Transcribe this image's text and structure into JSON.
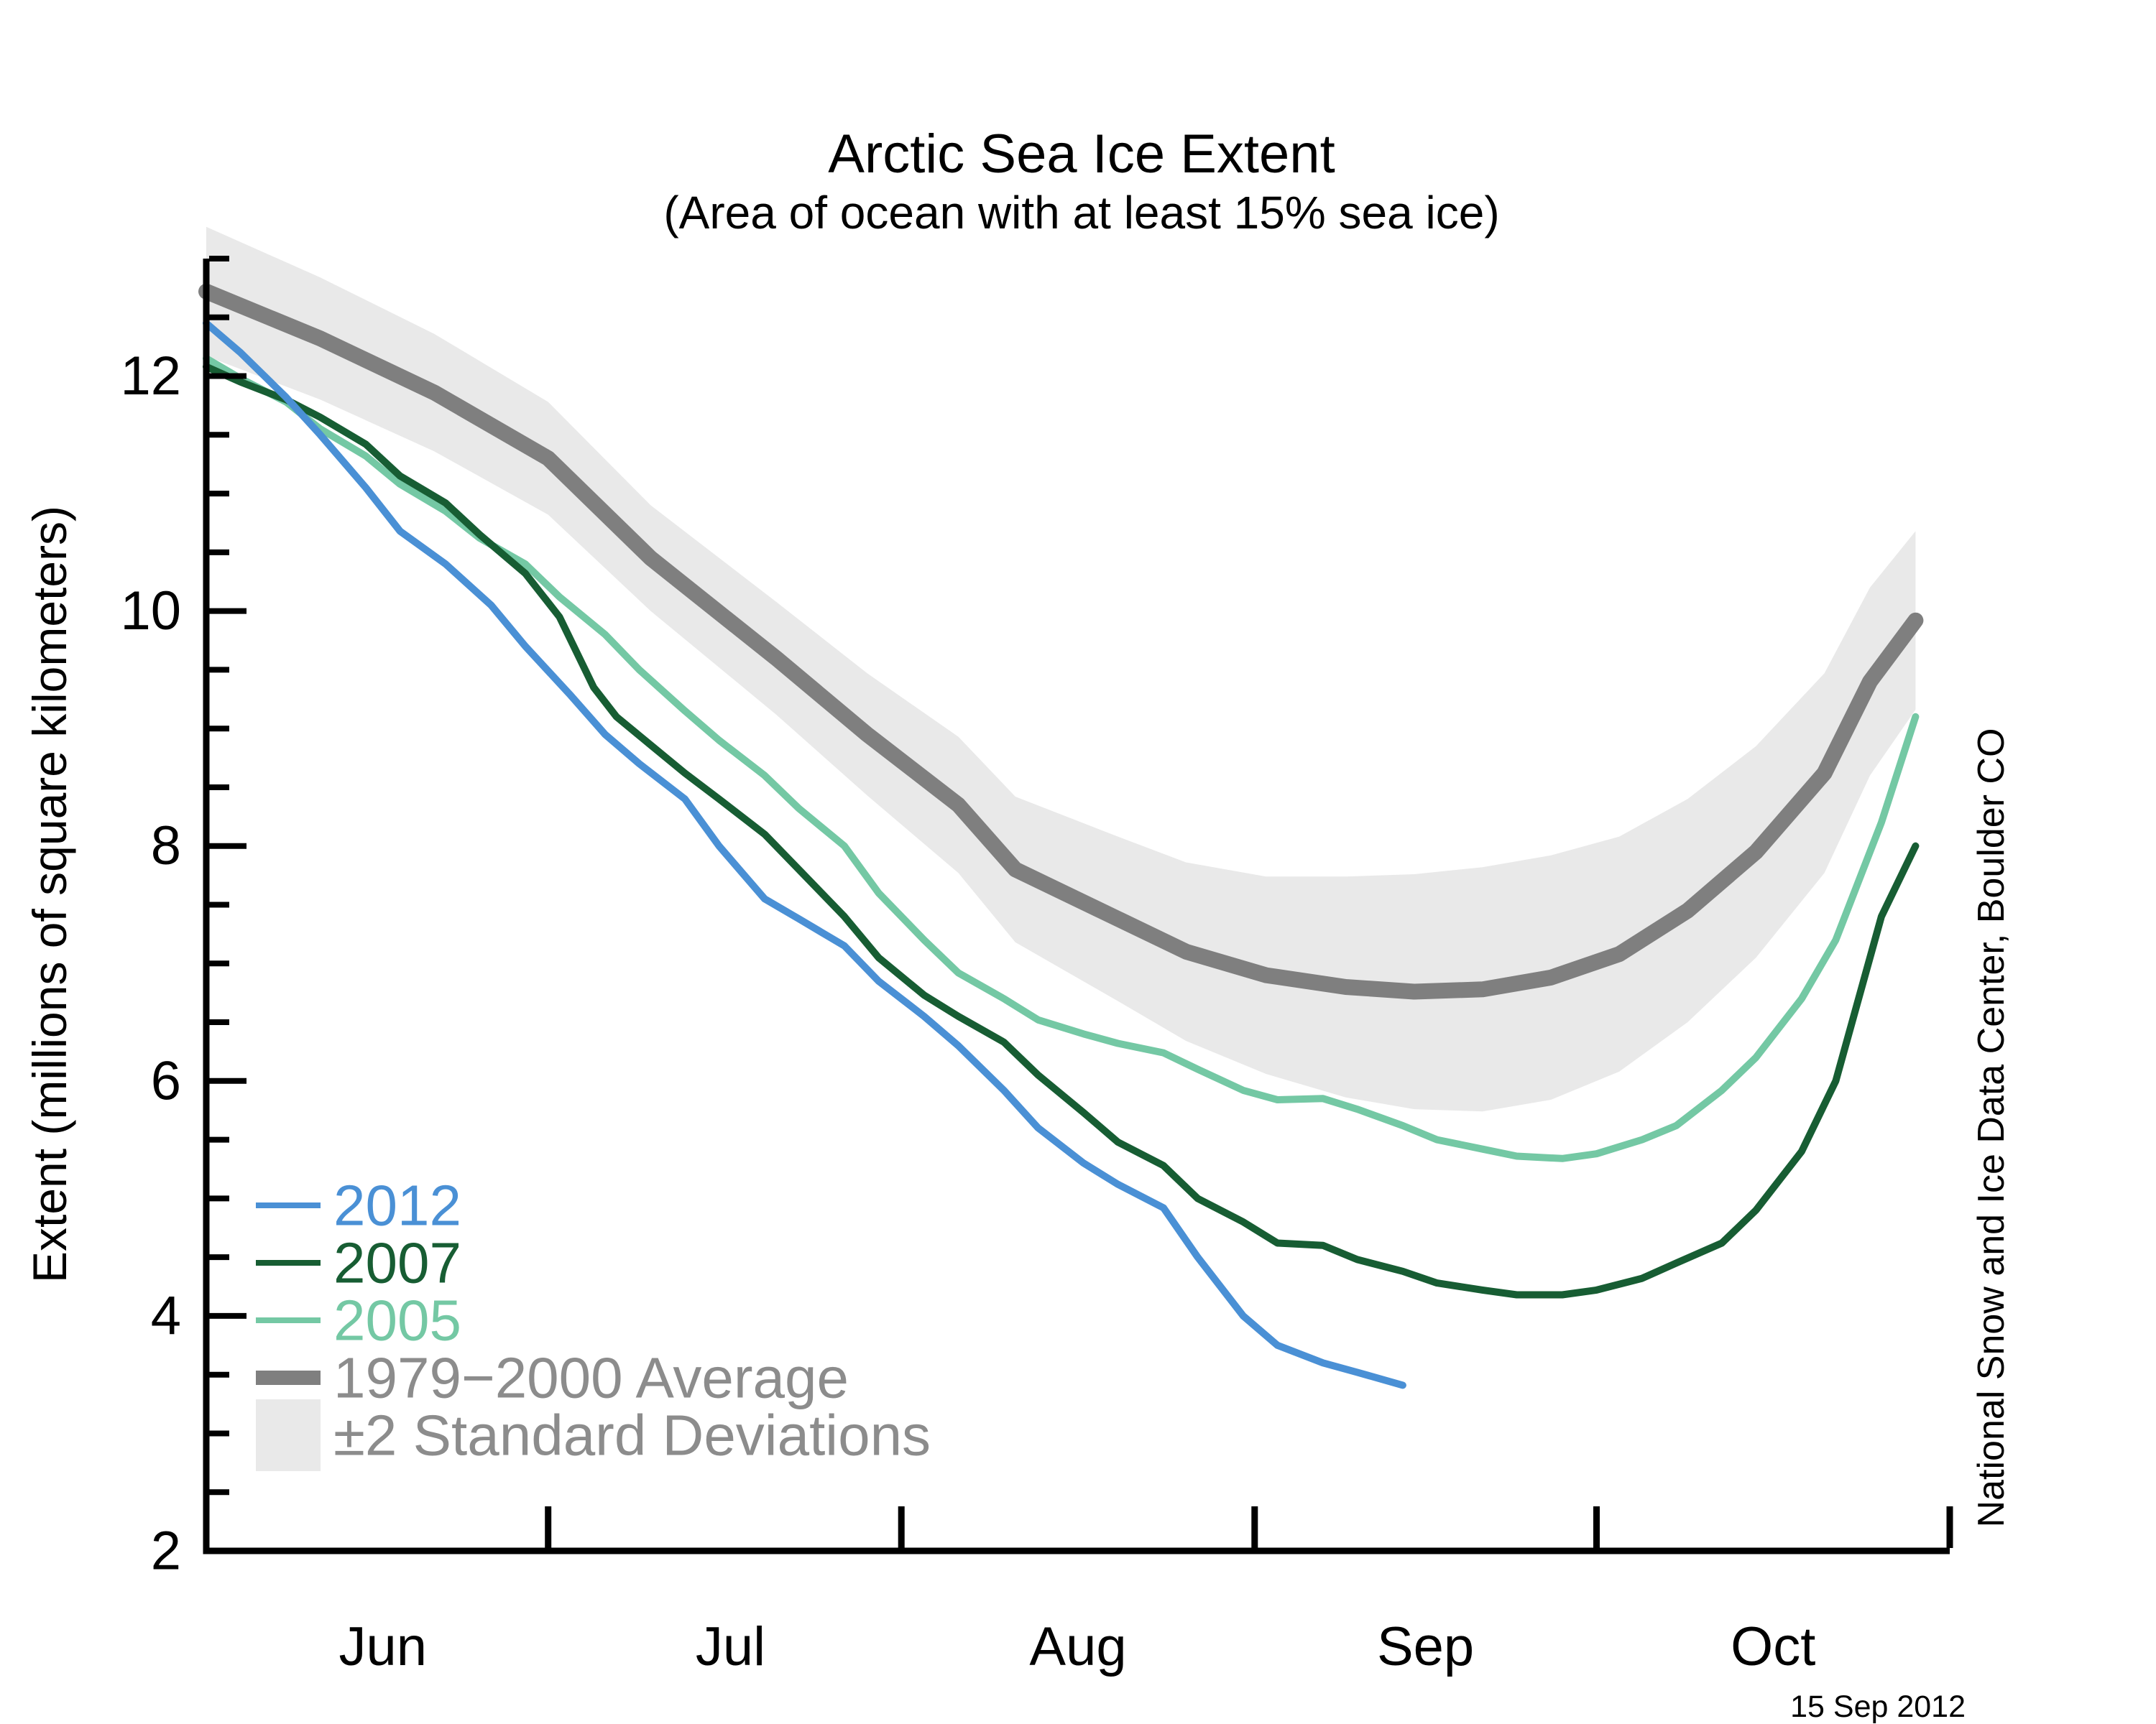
{
  "title": "Arctic Sea Ice Extent",
  "subtitle": "(Area of ocean with at least 15% sea ice)",
  "credit": "National Snow and Ice Data Center, Boulder CO",
  "date_label": "15 Sep 2012",
  "y_axis": {
    "label": "Extent (millions of square kilometers)",
    "tick_labels": [
      "2",
      "4",
      "6",
      "8",
      "10",
      "12"
    ],
    "tick_values": [
      2,
      4,
      6,
      8,
      10,
      12
    ],
    "minor_step": 0.5,
    "range": [
      2,
      13
    ]
  },
  "x_axis": {
    "month_labels": [
      "Jun",
      "Jul",
      "Aug",
      "Sep",
      "Oct"
    ],
    "month_label_days": [
      15.5,
      46,
      76.5,
      107,
      137.5
    ],
    "month_tick_days": [
      30,
      61,
      92,
      122,
      153
    ],
    "range_days": [
      0,
      153
    ]
  },
  "legend": {
    "items": [
      {
        "label": "2012",
        "color_key": "y2012",
        "swatch": "line",
        "text_color_key": "y2012"
      },
      {
        "label": "2007",
        "color_key": "y2007",
        "swatch": "line",
        "text_color_key": "y2007"
      },
      {
        "label": "2005",
        "color_key": "y2005",
        "swatch": "line",
        "text_color_key": "y2005"
      },
      {
        "label": "1979−2000 Average",
        "color_key": "average",
        "swatch": "thick-line",
        "text_color_key": "gray_text"
      },
      {
        "label": "±2 Standard Deviations",
        "color_key": "band",
        "swatch": "rect",
        "text_color_key": "gray_text"
      }
    ]
  },
  "colors": {
    "y2012": "#4a90d5",
    "y2007": "#175d33",
    "y2005": "#74c8a4",
    "average": "#7f7f7f",
    "band": "#e9e9e9",
    "gray_text": "#8c8c8c",
    "axis": "#000000"
  },
  "chart_data": {
    "type": "line",
    "title": "Arctic Sea Ice Extent",
    "subtitle": "(Area of ocean with at least 15% sea ice)",
    "xlabel": "",
    "ylabel": "Extent (millions of square kilometers)",
    "x_unit": "days since Jun 1",
    "x_range_days": [
      0,
      153
    ],
    "ylim": [
      2,
      13
    ],
    "grid": false,
    "legend_position": "lower-left",
    "band": {
      "name": "±2 Standard Deviations",
      "color_key": "band",
      "upper": [
        [
          0,
          13.27
        ],
        [
          10,
          12.84
        ],
        [
          20,
          12.36
        ],
        [
          30,
          11.78
        ],
        [
          39,
          10.9
        ],
        [
          50,
          10.08
        ],
        [
          58,
          9.47
        ],
        [
          66,
          8.93
        ],
        [
          71,
          8.42
        ],
        [
          80,
          8.08
        ],
        [
          86,
          7.86
        ],
        [
          93,
          7.74
        ],
        [
          100,
          7.74
        ],
        [
          106,
          7.76
        ],
        [
          112,
          7.82
        ],
        [
          118,
          7.92
        ],
        [
          124,
          8.08
        ],
        [
          130,
          8.4
        ],
        [
          136,
          8.85
        ],
        [
          142,
          9.47
        ],
        [
          146,
          10.2
        ],
        [
          150,
          10.68
        ]
      ],
      "lower": [
        [
          0,
          12.17
        ],
        [
          10,
          11.8
        ],
        [
          20,
          11.36
        ],
        [
          30,
          10.82
        ],
        [
          39,
          10.0
        ],
        [
          50,
          9.12
        ],
        [
          58,
          8.43
        ],
        [
          66,
          7.77
        ],
        [
          71,
          7.18
        ],
        [
          80,
          6.68
        ],
        [
          86,
          6.34
        ],
        [
          93,
          6.06
        ],
        [
          100,
          5.86
        ],
        [
          106,
          5.76
        ],
        [
          112,
          5.74
        ],
        [
          118,
          5.84
        ],
        [
          124,
          6.08
        ],
        [
          130,
          6.5
        ],
        [
          136,
          7.05
        ],
        [
          142,
          7.77
        ],
        [
          146,
          8.6
        ],
        [
          150,
          9.16
        ]
      ]
    },
    "series": [
      {
        "name": "1979−2000 Average",
        "color_key": "average",
        "width": 22,
        "points": [
          [
            0,
            12.72
          ],
          [
            10,
            12.32
          ],
          [
            20,
            11.86
          ],
          [
            30,
            11.3
          ],
          [
            39,
            10.45
          ],
          [
            50,
            9.6
          ],
          [
            58,
            8.95
          ],
          [
            66,
            8.35
          ],
          [
            71,
            7.8
          ],
          [
            80,
            7.38
          ],
          [
            86,
            7.1
          ],
          [
            93,
            6.9
          ],
          [
            100,
            6.8
          ],
          [
            106,
            6.76
          ],
          [
            112,
            6.78
          ],
          [
            118,
            6.88
          ],
          [
            124,
            7.08
          ],
          [
            130,
            7.45
          ],
          [
            136,
            7.95
          ],
          [
            142,
            8.62
          ],
          [
            146,
            9.4
          ],
          [
            150,
            9.92
          ]
        ]
      },
      {
        "name": "2005",
        "color_key": "y2005",
        "width": 10,
        "points": [
          [
            0,
            12.15
          ],
          [
            3,
            11.98
          ],
          [
            7,
            11.78
          ],
          [
            10,
            11.55
          ],
          [
            14,
            11.32
          ],
          [
            17,
            11.08
          ],
          [
            21,
            10.85
          ],
          [
            24,
            10.62
          ],
          [
            28,
            10.4
          ],
          [
            31,
            10.12
          ],
          [
            35,
            9.8
          ],
          [
            38,
            9.5
          ],
          [
            42,
            9.15
          ],
          [
            45,
            8.9
          ],
          [
            49,
            8.6
          ],
          [
            52,
            8.32
          ],
          [
            56,
            8.0
          ],
          [
            59,
            7.6
          ],
          [
            63,
            7.2
          ],
          [
            66,
            6.92
          ],
          [
            70,
            6.7
          ],
          [
            73,
            6.52
          ],
          [
            77,
            6.4
          ],
          [
            80,
            6.32
          ],
          [
            84,
            6.24
          ],
          [
            87,
            6.1
          ],
          [
            91,
            5.92
          ],
          [
            94,
            5.84
          ],
          [
            98,
            5.85
          ],
          [
            101,
            5.76
          ],
          [
            105,
            5.62
          ],
          [
            108,
            5.5
          ],
          [
            112,
            5.42
          ],
          [
            115,
            5.36
          ],
          [
            119,
            5.34
          ],
          [
            122,
            5.38
          ],
          [
            126,
            5.5
          ],
          [
            129,
            5.62
          ],
          [
            133,
            5.92
          ],
          [
            136,
            6.2
          ],
          [
            140,
            6.7
          ],
          [
            143,
            7.2
          ],
          [
            147,
            8.2
          ],
          [
            150,
            9.1
          ]
        ]
      },
      {
        "name": "2007",
        "color_key": "y2007",
        "width": 10,
        "points": [
          [
            0,
            12.08
          ],
          [
            3,
            11.95
          ],
          [
            7,
            11.8
          ],
          [
            10,
            11.65
          ],
          [
            14,
            11.42
          ],
          [
            17,
            11.15
          ],
          [
            21,
            10.92
          ],
          [
            24,
            10.65
          ],
          [
            28,
            10.32
          ],
          [
            31,
            9.95
          ],
          [
            34,
            9.35
          ],
          [
            36,
            9.1
          ],
          [
            39,
            8.86
          ],
          [
            42,
            8.62
          ],
          [
            45,
            8.4
          ],
          [
            49,
            8.1
          ],
          [
            52,
            7.8
          ],
          [
            56,
            7.4
          ],
          [
            59,
            7.05
          ],
          [
            63,
            6.73
          ],
          [
            66,
            6.55
          ],
          [
            70,
            6.33
          ],
          [
            73,
            6.05
          ],
          [
            77,
            5.73
          ],
          [
            80,
            5.48
          ],
          [
            84,
            5.28
          ],
          [
            87,
            5.0
          ],
          [
            91,
            4.8
          ],
          [
            94,
            4.62
          ],
          [
            98,
            4.6
          ],
          [
            101,
            4.48
          ],
          [
            105,
            4.38
          ],
          [
            108,
            4.28
          ],
          [
            112,
            4.22
          ],
          [
            115,
            4.18
          ],
          [
            119,
            4.18
          ],
          [
            122,
            4.22
          ],
          [
            126,
            4.32
          ],
          [
            129,
            4.45
          ],
          [
            133,
            4.62
          ],
          [
            136,
            4.9
          ],
          [
            140,
            5.4
          ],
          [
            143,
            6.0
          ],
          [
            147,
            7.4
          ],
          [
            150,
            8.0
          ]
        ]
      },
      {
        "name": "2012",
        "color_key": "y2012",
        "width": 10,
        "points": [
          [
            0,
            12.45
          ],
          [
            3,
            12.2
          ],
          [
            7,
            11.82
          ],
          [
            10,
            11.5
          ],
          [
            14,
            11.05
          ],
          [
            17,
            10.68
          ],
          [
            21,
            10.4
          ],
          [
            25,
            10.05
          ],
          [
            28,
            9.7
          ],
          [
            32,
            9.28
          ],
          [
            35,
            8.95
          ],
          [
            38,
            8.7
          ],
          [
            42,
            8.4
          ],
          [
            45,
            8.0
          ],
          [
            49,
            7.55
          ],
          [
            52,
            7.38
          ],
          [
            56,
            7.15
          ],
          [
            59,
            6.85
          ],
          [
            63,
            6.55
          ],
          [
            66,
            6.3
          ],
          [
            70,
            5.92
          ],
          [
            73,
            5.6
          ],
          [
            77,
            5.3
          ],
          [
            80,
            5.12
          ],
          [
            84,
            4.92
          ],
          [
            87,
            4.5
          ],
          [
            91,
            4.0
          ],
          [
            94,
            3.75
          ],
          [
            98,
            3.6
          ],
          [
            101,
            3.52
          ],
          [
            105,
            3.41
          ]
        ]
      }
    ]
  }
}
